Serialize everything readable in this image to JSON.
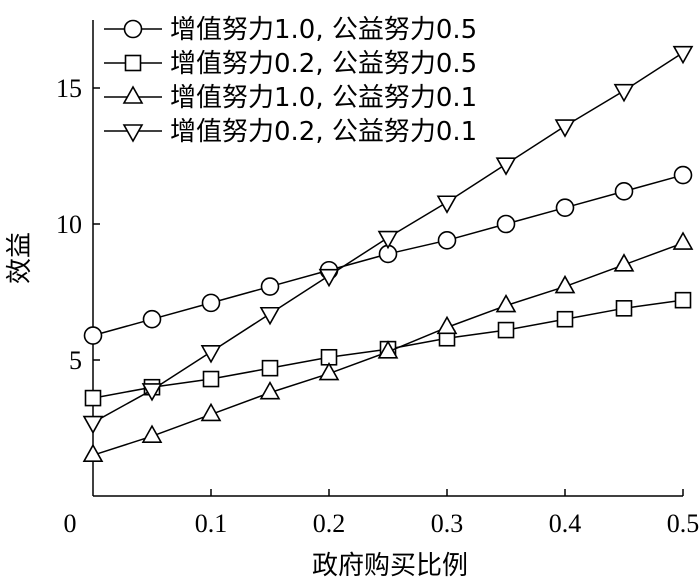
{
  "chart_data": {
    "type": "line",
    "title": "",
    "xlabel": "政府购买比例",
    "ylabel": "效益",
    "xlim": [
      0,
      0.5
    ],
    "ylim": [
      0,
      17.5
    ],
    "x_tick_labels": [
      "0",
      "0.1",
      "0.2",
      "0.3",
      "0.4",
      "0.5"
    ],
    "x_tick_values": [
      0,
      0.1,
      0.2,
      0.3,
      0.4,
      0.5
    ],
    "y_tick_labels": [
      "5",
      "10",
      "15"
    ],
    "y_tick_values": [
      5,
      10,
      15
    ],
    "grid": false,
    "legend_position": "top-left",
    "x": [
      0,
      0.05,
      0.1,
      0.15,
      0.2,
      0.25,
      0.3,
      0.35,
      0.4,
      0.45,
      0.5
    ],
    "series": [
      {
        "name": "增值努力1.0, 公益努力0.5",
        "marker": "circle",
        "values": [
          5.9,
          6.5,
          7.1,
          7.7,
          8.3,
          8.9,
          9.4,
          10.0,
          10.6,
          11.2,
          11.8
        ]
      },
      {
        "name": "增值努力0.2, 公益努力0.5",
        "marker": "square",
        "values": [
          3.6,
          4.0,
          4.3,
          4.7,
          5.1,
          5.4,
          5.8,
          6.1,
          6.5,
          6.9,
          7.2
        ]
      },
      {
        "name": "增值努力1.0, 公益努力0.1",
        "marker": "triangle-up",
        "values": [
          1.5,
          2.2,
          3.0,
          3.8,
          4.5,
          5.3,
          6.2,
          7.0,
          7.7,
          8.5,
          9.3
        ]
      },
      {
        "name": "增值努力0.2, 公益努力0.1",
        "marker": "triangle-down",
        "values": [
          2.7,
          3.9,
          5.3,
          6.7,
          8.1,
          9.5,
          10.8,
          12.2,
          13.6,
          14.9,
          16.3
        ]
      }
    ]
  }
}
